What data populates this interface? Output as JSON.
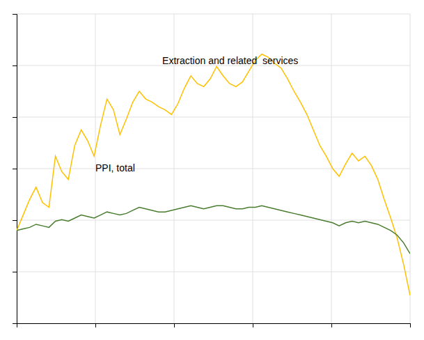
{
  "chart_data": {
    "type": "line",
    "x": [
      0,
      1,
      2,
      3,
      4,
      5,
      6,
      7,
      8,
      9,
      10,
      11,
      12,
      13,
      14,
      15,
      16,
      17,
      18,
      19,
      20,
      21,
      22,
      23,
      24,
      25,
      26,
      27,
      28,
      29,
      30,
      31,
      32,
      33,
      34,
      35,
      36,
      37,
      38,
      39,
      40,
      41,
      42,
      43,
      44,
      45,
      46,
      47,
      48,
      49,
      50,
      51,
      52,
      53,
      54,
      55,
      56,
      57,
      58,
      59,
      60,
      61
    ],
    "series": [
      {
        "name": "Extraction and related  services",
        "color": "#FFC000",
        "values": [
          100,
          110,
          120,
          128,
          118,
          115,
          148,
          138,
          133,
          155,
          165,
          158,
          148,
          168,
          185,
          178,
          162,
          172,
          183,
          190,
          185,
          183,
          180,
          178,
          175,
          182,
          192,
          200,
          195,
          193,
          198,
          206,
          200,
          195,
          193,
          196,
          203,
          210,
          214,
          212,
          208,
          205,
          198,
          190,
          183,
          175,
          165,
          155,
          148,
          140,
          135,
          143,
          150,
          145,
          148,
          142,
          133,
          120,
          108,
          95,
          78,
          58
        ]
      },
      {
        "name": "PPI, total",
        "color": "#4A7C2F",
        "values": [
          100,
          101,
          102,
          104,
          103,
          102,
          106,
          107,
          106,
          108,
          110,
          109,
          108,
          110,
          112,
          111,
          110,
          111,
          113,
          115,
          114,
          113,
          112,
          112,
          113,
          114,
          115,
          116,
          115,
          114,
          115,
          116,
          116,
          115,
          114,
          114,
          115,
          115,
          116,
          115,
          114,
          113,
          112,
          111,
          110,
          109,
          108,
          107,
          106,
          105,
          103,
          105,
          106,
          105,
          106,
          105,
          104,
          102,
          100,
          97,
          92,
          85
        ]
      }
    ],
    "xlim": [
      0,
      61
    ],
    "xticks": [
      0,
      12.2,
      24.4,
      36.6,
      48.8,
      61
    ],
    "ylim": [
      40,
      240
    ],
    "yticks": [
      40,
      73.33333333333333,
      106.66666666666667,
      140,
      173.33333333333334,
      206.66666666666666,
      240
    ],
    "grid": true,
    "tick_labels": false
  }
}
